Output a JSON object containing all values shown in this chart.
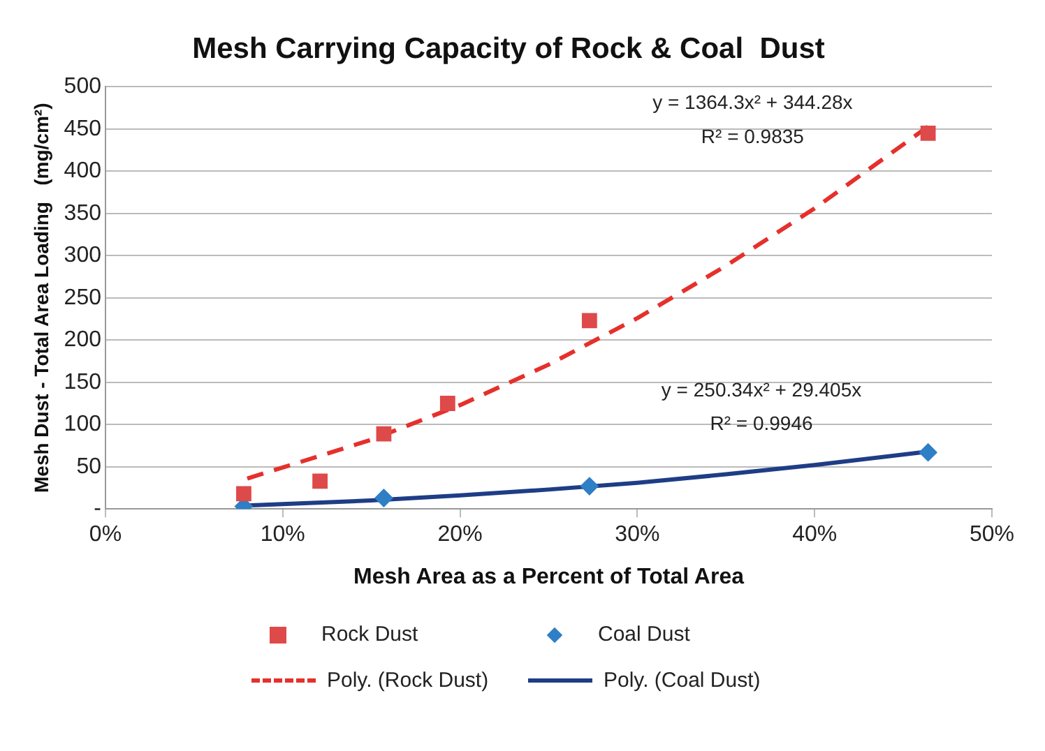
{
  "chart_data": {
    "type": "scatter",
    "title": "Mesh Carrying Capacity of Rock & Coal  Dust",
    "xlabel": "Mesh Area as a Percent of Total Area",
    "ylabel": "Mesh Dust - Total Area Loading   (mg/cm²)",
    "series": [
      {
        "name": "Rock Dust",
        "type": "scatter",
        "color": "#de4a4a",
        "marker": "square",
        "x": [
          7.8,
          12.1,
          15.7,
          19.3,
          27.3,
          46.4
        ],
        "values": [
          18,
          33,
          89,
          125,
          223,
          445
        ]
      },
      {
        "name": "Coal Dust",
        "type": "scatter",
        "color": "#2f7fc6",
        "marker": "diamond",
        "x": [
          7.8,
          15.7,
          27.3,
          46.4
        ],
        "values": [
          3,
          13,
          27,
          67
        ]
      },
      {
        "name": "Poly. (Rock Dust)",
        "type": "line",
        "color": "#e5302c",
        "marker": "none",
        "line_style": "dashed",
        "x": [
          8,
          15,
          20,
          25,
          30,
          35,
          40,
          46.4
        ],
        "values": [
          36,
          82,
          123,
          171,
          226,
          288,
          356,
          453
        ]
      },
      {
        "name": "Poly. (Coal Dust)",
        "type": "line",
        "color": "#1f3d86",
        "marker": "none",
        "line_style": "solid",
        "x": [
          8,
          15,
          20,
          25,
          30,
          35,
          40,
          46.4
        ],
        "values": [
          4,
          10,
          16,
          23,
          31,
          41,
          52,
          68
        ]
      }
    ],
    "annotations": [
      "y = 1364.3x² + 344.28x",
      "R² = 0.9835",
      "y = 250.34x² + 29.405x",
      "R² = 0.9946"
    ],
    "xlim": [
      0,
      50
    ],
    "xticks": [
      {
        "value": 0,
        "label": "0%"
      },
      {
        "value": 10,
        "label": "10%"
      },
      {
        "value": 20,
        "label": "20%"
      },
      {
        "value": 30,
        "label": "30%"
      },
      {
        "value": 40,
        "label": "40%"
      },
      {
        "value": 50,
        "label": "50%"
      }
    ],
    "ylim": [
      0,
      500
    ],
    "yticks": [
      {
        "value": 0,
        "label": "-"
      },
      50,
      100,
      150,
      200,
      250,
      300,
      350,
      400,
      450,
      500
    ],
    "grid": "y",
    "legend": "bottom"
  }
}
